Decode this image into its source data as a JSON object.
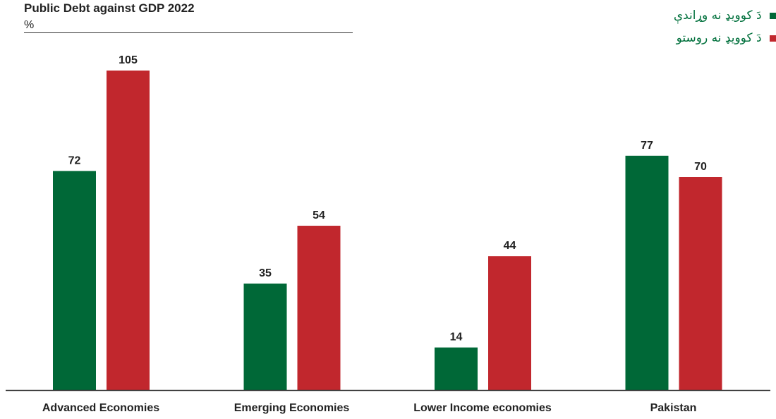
{
  "chart_data": {
    "type": "bar",
    "title": "Public Debt against GDP 2022",
    "unit": "%",
    "categories": [
      "Advanced Economies",
      "Emerging Economies",
      "Lower Income economies",
      "Pakistan"
    ],
    "series": [
      {
        "name": "دَ کوویډ نه وړاندې",
        "color": "#006837",
        "values": [
          72,
          35,
          14,
          77
        ]
      },
      {
        "name": "دَ کوویډ نه روستو",
        "color": "#c1272d",
        "values": [
          105,
          54,
          44,
          70
        ]
      }
    ],
    "ylim": [
      0,
      110
    ],
    "xlabel": "",
    "ylabel": "",
    "grid": false,
    "legend_position": "top-right",
    "text_color": "#222222",
    "legend_text_color": "#00703c"
  }
}
